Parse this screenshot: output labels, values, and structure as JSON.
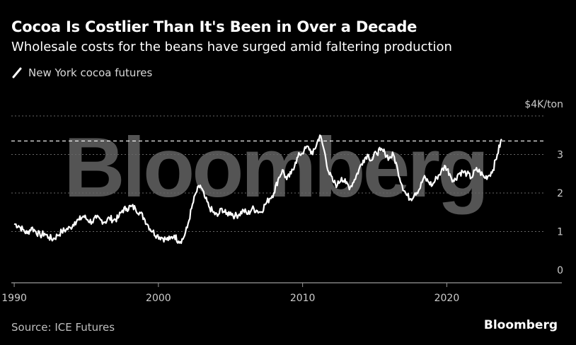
{
  "header": {
    "title": "Cocoa Is Costlier Than It's Been in Over a Decade",
    "subtitle": "Wholesale costs for the beans have surged amid faltering production"
  },
  "legend": {
    "label": "New York cocoa futures",
    "icon": "slash-line-icon"
  },
  "footer": {
    "source": "Source: ICE Futures",
    "brand": "Bloomberg"
  },
  "watermark": "Bloomberg",
  "colors": {
    "background": "#000000",
    "line": "#ffffff",
    "grid": "#666666",
    "reference_line": "#ffffff",
    "text_muted": "#cccccc"
  },
  "chart_data": {
    "type": "line",
    "title": "Cocoa Is Costlier Than It's Been in Over a Decade",
    "subtitle": "Wholesale costs for the beans have surged amid faltering production",
    "xlabel": "",
    "ylabel": "$4K/ton",
    "unit_label": "$4K/ton",
    "xlim": [
      1989.8,
      2026.8
    ],
    "ylim": [
      0,
      4
    ],
    "x_ticks": [
      1990,
      2000,
      2010,
      2020
    ],
    "x_tick_labels": [
      "1990",
      "2000",
      "2010",
      "2020"
    ],
    "y_ticks": [
      0,
      1,
      2,
      3,
      4
    ],
    "y_tick_labels": [
      "0",
      "1",
      "2",
      "3",
      "$4K/ton"
    ],
    "grid": true,
    "grid_style": "dotted horizontal",
    "y_axis_position": "right",
    "reference_line": {
      "y": 3.35,
      "style": "dashed"
    },
    "legend_position": "top-left",
    "series": [
      {
        "name": "New York cocoa futures",
        "x": [
          1990.0,
          1990.3,
          1990.6,
          1990.9,
          1991.2,
          1991.5,
          1991.8,
          1992.1,
          1992.4,
          1992.7,
          1993.0,
          1993.3,
          1993.6,
          1993.9,
          1994.2,
          1994.5,
          1994.8,
          1995.1,
          1995.4,
          1995.7,
          1996.0,
          1996.3,
          1996.6,
          1996.9,
          1997.2,
          1997.5,
          1997.8,
          1998.1,
          1998.4,
          1998.7,
          1999.0,
          1999.3,
          1999.6,
          1999.9,
          2000.2,
          2000.5,
          2000.8,
          2001.1,
          2001.4,
          2001.7,
          2002.0,
          2002.3,
          2002.6,
          2002.9,
          2003.2,
          2003.5,
          2003.8,
          2004.1,
          2004.4,
          2004.7,
          2005.0,
          2005.3,
          2005.6,
          2005.9,
          2006.2,
          2006.5,
          2006.8,
          2007.1,
          2007.4,
          2007.7,
          2008.0,
          2008.3,
          2008.6,
          2008.9,
          2009.2,
          2009.5,
          2009.8,
          2010.1,
          2010.4,
          2010.7,
          2011.0,
          2011.2,
          2011.5,
          2011.8,
          2012.1,
          2012.4,
          2012.7,
          2013.0,
          2013.3,
          2013.6,
          2013.9,
          2014.2,
          2014.5,
          2014.8,
          2015.1,
          2015.4,
          2015.7,
          2016.0,
          2016.3,
          2016.6,
          2016.9,
          2017.2,
          2017.5,
          2017.8,
          2018.1,
          2018.4,
          2018.7,
          2019.0,
          2019.3,
          2019.6,
          2019.9,
          2020.2,
          2020.5,
          2020.8,
          2021.1,
          2021.4,
          2021.7,
          2022.0,
          2022.3,
          2022.6,
          2022.9,
          2023.2,
          2023.5,
          2023.8
        ],
        "y": [
          1.2,
          1.15,
          1.05,
          0.95,
          1.1,
          1.0,
          0.9,
          0.95,
          0.85,
          0.8,
          0.9,
          1.0,
          1.05,
          1.1,
          1.25,
          1.3,
          1.4,
          1.3,
          1.25,
          1.35,
          1.3,
          1.25,
          1.35,
          1.3,
          1.35,
          1.55,
          1.6,
          1.65,
          1.6,
          1.5,
          1.35,
          1.15,
          1.0,
          0.9,
          0.85,
          0.8,
          0.8,
          0.9,
          0.75,
          0.8,
          1.1,
          1.6,
          2.0,
          2.2,
          1.9,
          1.65,
          1.5,
          1.4,
          1.6,
          1.45,
          1.5,
          1.4,
          1.45,
          1.55,
          1.45,
          1.6,
          1.55,
          1.5,
          1.7,
          1.85,
          2.0,
          2.35,
          2.6,
          2.35,
          2.5,
          2.8,
          3.0,
          3.1,
          3.2,
          3.0,
          3.3,
          3.5,
          3.1,
          2.55,
          2.3,
          2.2,
          2.4,
          2.25,
          2.15,
          2.35,
          2.6,
          2.85,
          3.0,
          2.85,
          3.05,
          3.1,
          3.05,
          2.9,
          3.0,
          2.6,
          2.2,
          1.95,
          1.85,
          2.0,
          2.1,
          2.4,
          2.3,
          2.2,
          2.4,
          2.55,
          2.7,
          2.5,
          2.3,
          2.5,
          2.55,
          2.5,
          2.4,
          2.6,
          2.55,
          2.4,
          2.45,
          2.6,
          3.0,
          3.4
        ],
        "color": "#ffffff"
      }
    ]
  }
}
